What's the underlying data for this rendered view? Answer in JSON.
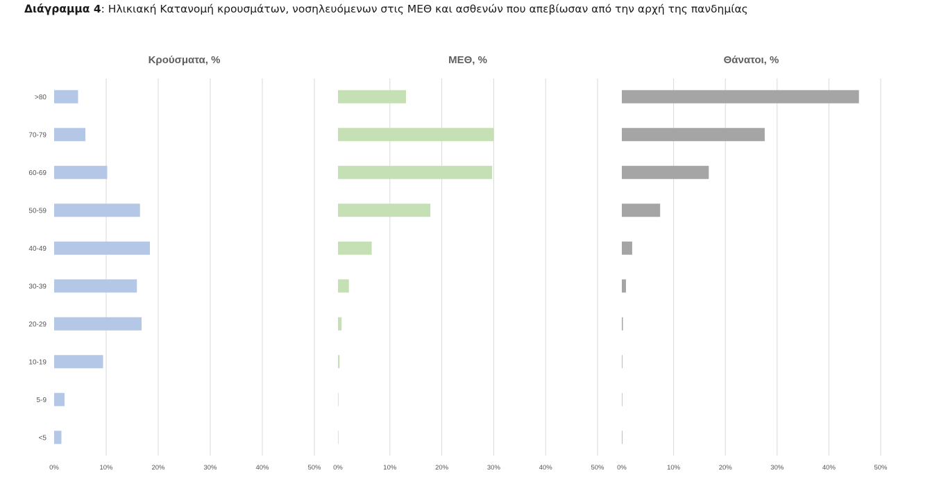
{
  "caption": {
    "bold": "Διάγραμμα 4",
    "rest": ": Ηλικιακή Κατανομή κρουσμάτων, νοσηλευόμενων στις ΜΕΘ και ασθενών που απεβίωσαν από την αρχή της πανδημίας"
  },
  "chart_data": [
    {
      "type": "bar",
      "orientation": "horizontal",
      "title": "Κρούσματα, %",
      "categories": [
        ">80",
        "70-79",
        "60-69",
        "50-59",
        "40-49",
        "30-39",
        "20-29",
        "10-19",
        "5-9",
        "<5"
      ],
      "values": [
        4.6,
        6.0,
        10.2,
        16.5,
        18.4,
        15.9,
        16.8,
        9.4,
        2.0,
        1.4
      ],
      "xlim": [
        0,
        50
      ],
      "xticks": [
        "0%",
        "10%",
        "20%",
        "30%",
        "40%",
        "50%"
      ],
      "color": "#b4c7e7",
      "grid": true
    },
    {
      "type": "bar",
      "orientation": "horizontal",
      "title": "ΜΕΘ, %",
      "categories": [
        ">80",
        "70-79",
        "60-69",
        "50-59",
        "40-49",
        "30-39",
        "20-29",
        "10-19",
        "5-9",
        "<5"
      ],
      "values": [
        13.1,
        30.0,
        29.7,
        17.8,
        6.5,
        2.1,
        0.7,
        0.3,
        0.1,
        0.1
      ],
      "xlim": [
        0,
        50
      ],
      "xticks": [
        "0%",
        "10%",
        "20%",
        "30%",
        "40%",
        "50%"
      ],
      "color": "#c5e0b4",
      "grid": true
    },
    {
      "type": "bar",
      "orientation": "horizontal",
      "title": "Θάνατοι, %",
      "categories": [
        ">80",
        "70-79",
        "60-69",
        "50-59",
        "40-49",
        "30-39",
        "20-29",
        "10-19",
        "5-9",
        "<5"
      ],
      "values": [
        45.8,
        27.6,
        16.8,
        7.4,
        2.0,
        0.8,
        0.2,
        0.1,
        0.0,
        0.1
      ],
      "xlim": [
        0,
        50
      ],
      "xticks": [
        "0%",
        "10%",
        "20%",
        "30%",
        "40%",
        "50%"
      ],
      "color": "#a5a5a5",
      "grid": true
    }
  ]
}
